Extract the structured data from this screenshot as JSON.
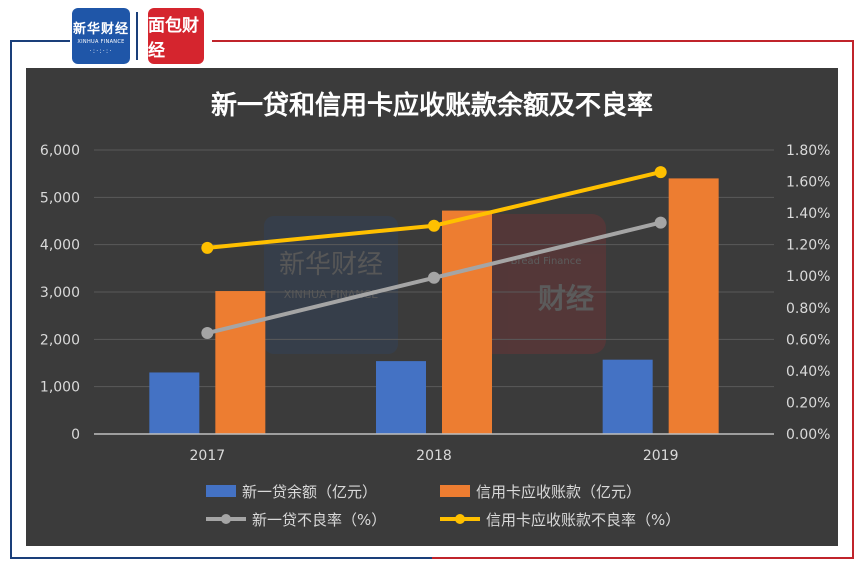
{
  "header": {
    "logo_xinhua_text": "新华财经",
    "logo_xinhua_sub": "XINHUA FINANCE",
    "logo_bread_text": "面包财经"
  },
  "watermark": {
    "xinhua_text": "新华财经",
    "xinhua_sub": "XINHUA FINANCE",
    "bread_sub": "Bread Finance",
    "bread_text": "财经"
  },
  "chart_data": {
    "type": "bar",
    "title": "新一贷和信用卡应收账款余额及不良率",
    "categories": [
      "2017",
      "2018",
      "2019"
    ],
    "ylim": [
      0,
      6000
    ],
    "y_ticks": [
      "0",
      "1,000",
      "2,000",
      "3,000",
      "4,000",
      "5,000",
      "6,000"
    ],
    "y2lim": [
      0,
      1.8
    ],
    "y2_ticks": [
      "0.00%",
      "0.20%",
      "0.40%",
      "0.60%",
      "0.80%",
      "1.00%",
      "1.20%",
      "1.40%",
      "1.60%",
      "1.80%"
    ],
    "grid": true,
    "legend": "bottom",
    "series": [
      {
        "name": "新一贷余额（亿元）",
        "type": "bar",
        "axis": "left",
        "color": "#4472c4",
        "values": [
          1300,
          1540,
          1570
        ]
      },
      {
        "name": "信用卡应收账款（亿元）",
        "type": "bar",
        "axis": "left",
        "color": "#ed7d31",
        "values": [
          3020,
          4720,
          5400
        ]
      },
      {
        "name": "新一贷不良率（%）",
        "type": "line",
        "axis": "right",
        "color": "#a5a5a5",
        "values": [
          0.64,
          0.99,
          1.34
        ]
      },
      {
        "name": "信用卡应收账款不良率（%）",
        "type": "line",
        "axis": "right",
        "color": "#ffc000",
        "values": [
          1.18,
          1.32,
          1.66
        ]
      }
    ]
  }
}
